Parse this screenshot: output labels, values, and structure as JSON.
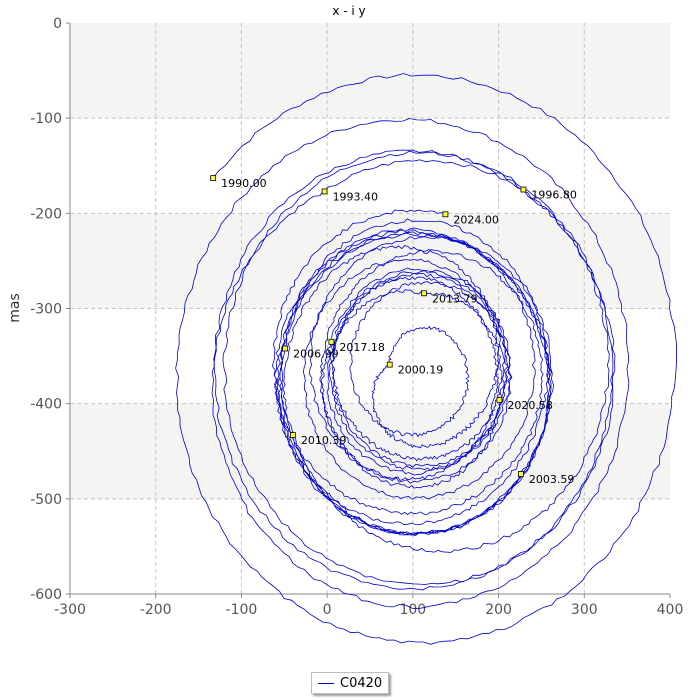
{
  "chart_data": {
    "type": "line",
    "title": "x - i y",
    "xlabel": "",
    "ylabel": "mas",
    "xlim": [
      -300,
      400
    ],
    "ylim": [
      -600,
      0
    ],
    "x_ticks": [
      -300,
      -200,
      -100,
      0,
      100,
      200,
      300,
      400
    ],
    "y_ticks": [
      0,
      -100,
      -200,
      -300,
      -400,
      -500,
      -600
    ],
    "grid": true,
    "legend_position": "bottom-center",
    "series": [
      {
        "name": "C0420",
        "color": "#0000cc"
      }
    ],
    "markers": [
      {
        "label": "1990.00",
        "x": -133,
        "y": -163
      },
      {
        "label": "1993.40",
        "x": -3,
        "y": -177
      },
      {
        "label": "1996.80",
        "x": 229,
        "y": -175
      },
      {
        "label": "2000.19",
        "x": 73,
        "y": -359
      },
      {
        "label": "2003.59",
        "x": 226,
        "y": -474
      },
      {
        "label": "2006.99",
        "x": -49,
        "y": -342
      },
      {
        "label": "2010.39",
        "x": -40,
        "y": -433
      },
      {
        "label": "2013.79",
        "x": 113,
        "y": -284
      },
      {
        "label": "2017.18",
        "x": 5,
        "y": -335
      },
      {
        "label": "2020.58",
        "x": 201,
        "y": -396
      },
      {
        "label": "2024.00",
        "x": 138,
        "y": -201
      }
    ]
  }
}
